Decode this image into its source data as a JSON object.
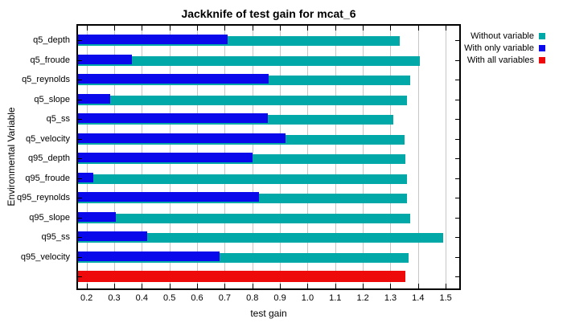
{
  "chart_data": {
    "type": "bar",
    "orientation": "horizontal",
    "title": "Jackknife of test gain for mcat_6",
    "xlabel": "test gain",
    "ylabel": "Environmental Variable",
    "axis_min": 0.169,
    "axis_max": 1.549,
    "grid": "vertical-only",
    "legend_position": "top-right-outside",
    "xticks": [
      {
        "value": 0.2,
        "label": "0.2"
      },
      {
        "value": 0.3,
        "label": "0.3"
      },
      {
        "value": 0.4,
        "label": "0.4"
      },
      {
        "value": 0.5,
        "label": "0.5"
      },
      {
        "value": 0.6,
        "label": "0.6"
      },
      {
        "value": 0.7,
        "label": "0.7"
      },
      {
        "value": 0.8,
        "label": "0.8"
      },
      {
        "value": 0.9,
        "label": "0.9"
      },
      {
        "value": 1.0,
        "label": "1.0"
      },
      {
        "value": 1.1,
        "label": "1.1"
      },
      {
        "value": 1.2,
        "label": "1.2"
      },
      {
        "value": 1.3,
        "label": "1.3"
      },
      {
        "value": 1.4,
        "label": "1.4"
      },
      {
        "value": 1.5,
        "label": "1.5"
      }
    ],
    "categories": [
      "q5_depth",
      "q5_froude",
      "q5_reynolds",
      "q5_slope",
      "q5_ss",
      "q5_velocity",
      "q95_depth",
      "q95_froude",
      "q95_reynolds",
      "q95_slope",
      "q95_ss",
      "q95_velocity"
    ],
    "series": [
      {
        "name": "Without variable",
        "color": "#00a8a8",
        "values": [
          1.335,
          1.405,
          1.37,
          1.36,
          1.31,
          1.35,
          1.355,
          1.36,
          1.36,
          1.37,
          1.49,
          1.365
        ]
      },
      {
        "name": "With only variable",
        "color": "#0909ec",
        "values": [
          0.71,
          0.365,
          0.86,
          0.285,
          0.855,
          0.92,
          0.8,
          0.225,
          0.825,
          0.305,
          0.42,
          0.68
        ]
      },
      {
        "name": "With all variables",
        "color": "#ee0a0a",
        "values": [
          1.355
        ]
      }
    ],
    "colors": {
      "grid": "#c6c6c6",
      "axis": "#000000",
      "background": "#ffffff"
    }
  }
}
